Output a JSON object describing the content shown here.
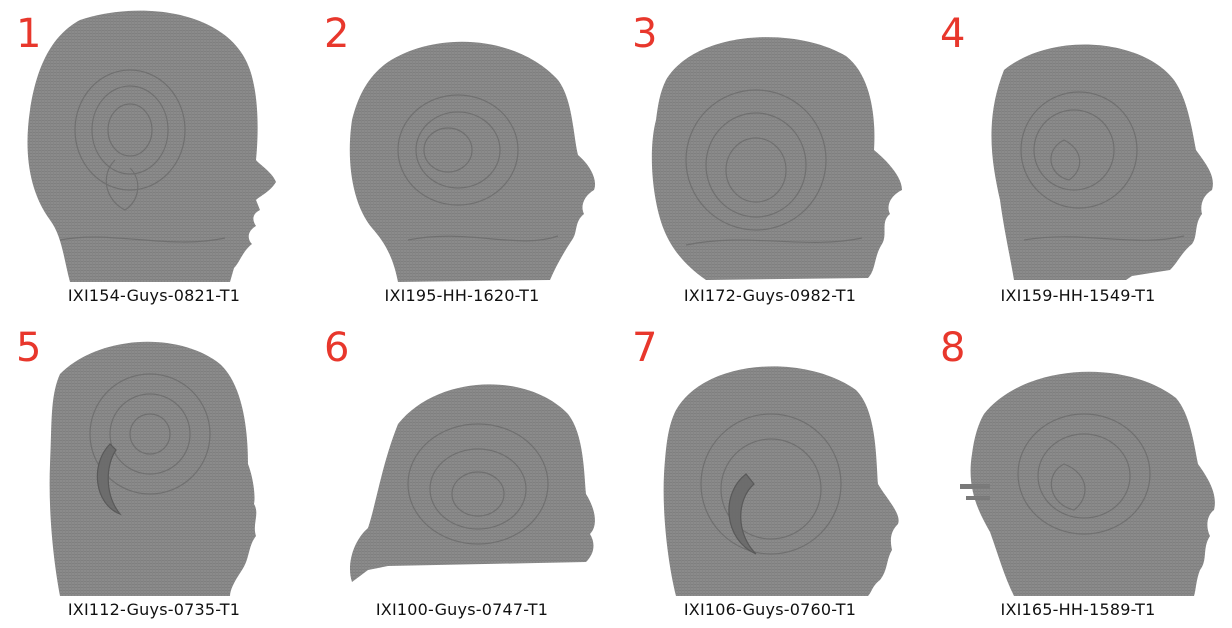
{
  "figure": {
    "panels": [
      {
        "number": "1",
        "caption": "IXI154-Guys-0821-T1"
      },
      {
        "number": "2",
        "caption": "IXI195-HH-1620-T1"
      },
      {
        "number": "3",
        "caption": "IXI172-Guys-0982-T1"
      },
      {
        "number": "4",
        "caption": "IXI159-HH-1549-T1"
      },
      {
        "number": "5",
        "caption": "IXI112-Guys-0735-T1"
      },
      {
        "number": "6",
        "caption": "IXI100-Guys-0747-T1"
      },
      {
        "number": "7",
        "caption": "IXI106-Guys-0760-T1"
      },
      {
        "number": "8",
        "caption": "IXI165-HH-1589-T1"
      }
    ]
  },
  "colors": {
    "number": "#e8372c",
    "head_fill": "#8a8a8a",
    "head_contour": "#6e6e6e"
  }
}
